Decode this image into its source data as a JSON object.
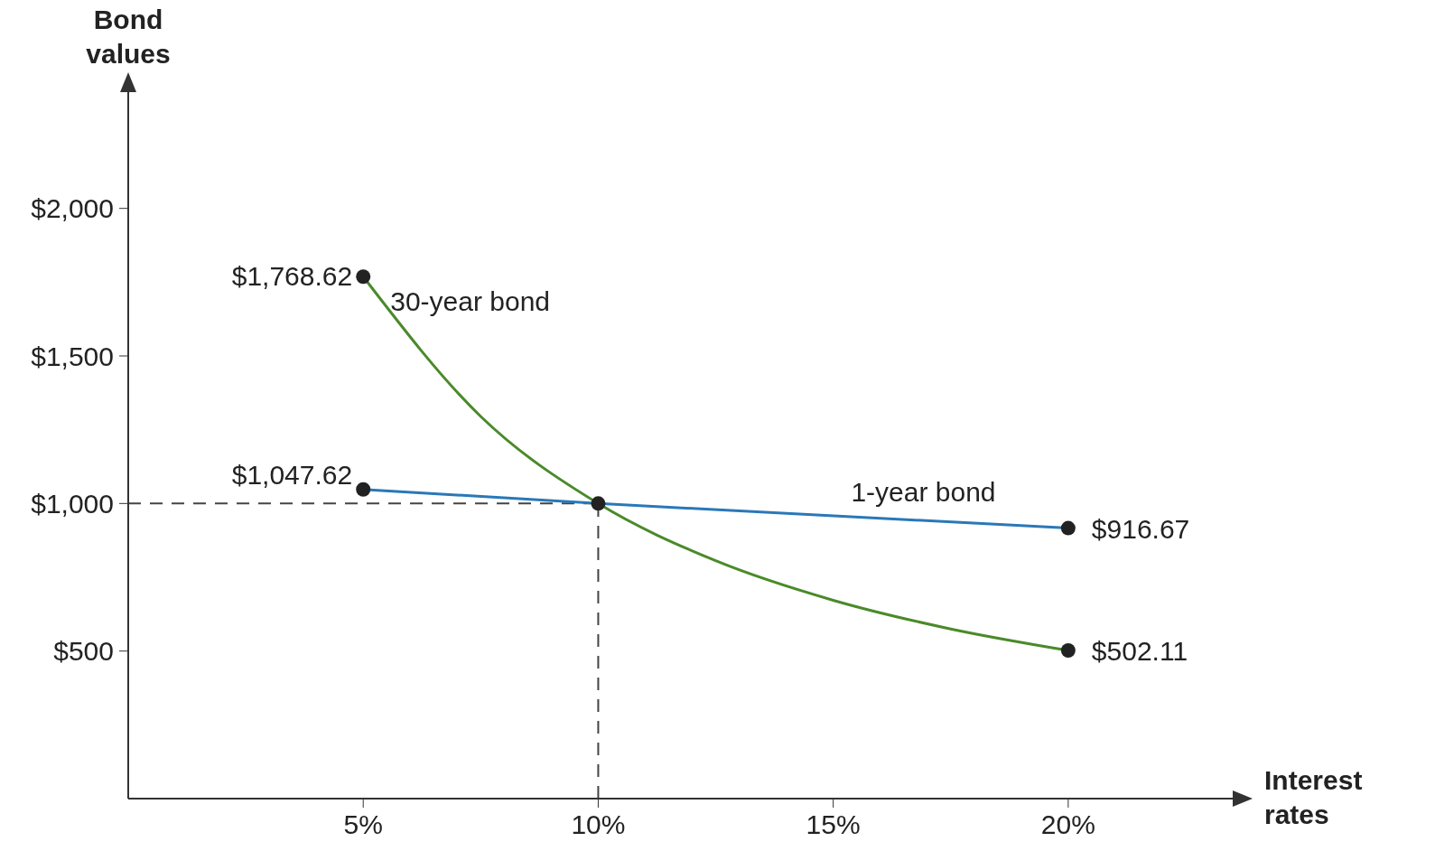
{
  "chart_data": {
    "type": "line",
    "xlabel": "Interest rates",
    "ylabel": "Bond values",
    "xlim": [
      0,
      23.5
    ],
    "ylim": [
      0,
      2400
    ],
    "xticks": [
      {
        "value": 5,
        "label": "5%"
      },
      {
        "value": 10,
        "label": "10%"
      },
      {
        "value": 15,
        "label": "15%"
      },
      {
        "value": 20,
        "label": "20%"
      }
    ],
    "yticks": [
      {
        "value": 500,
        "label": "$500"
      },
      {
        "value": 1000,
        "label": "$1,000"
      },
      {
        "value": 1500,
        "label": "$1,500"
      },
      {
        "value": 2000,
        "label": "$2,000"
      }
    ],
    "series": [
      {
        "name": "30-year bond",
        "color": "#4a8a2a",
        "marker": "none",
        "x": [
          5,
          7.5,
          10,
          12.5,
          15,
          17.5,
          20
        ],
        "values": [
          1768.62,
          1295,
          1000,
          806,
          672,
          575,
          502.11
        ]
      },
      {
        "type": "scatter",
        "color": "#222222",
        "marker": "circle",
        "x": [
          5,
          20
        ],
        "values": [
          1768.62,
          502.11
        ],
        "value_labels": [
          "$1,768.62",
          "$502.11"
        ]
      },
      {
        "name": "1-year bond",
        "color": "#2a78b8",
        "marker": "circle",
        "x": [
          5,
          10,
          20
        ],
        "values": [
          1047.62,
          1000,
          916.67
        ],
        "value_labels": [
          "$1,047.62",
          null,
          "$916.67"
        ]
      }
    ],
    "ref_lines": [
      {
        "axis": "y",
        "value": 1000,
        "line_style": "dashed"
      },
      {
        "axis": "x",
        "value": 10,
        "line_style": "dashed"
      }
    ]
  }
}
